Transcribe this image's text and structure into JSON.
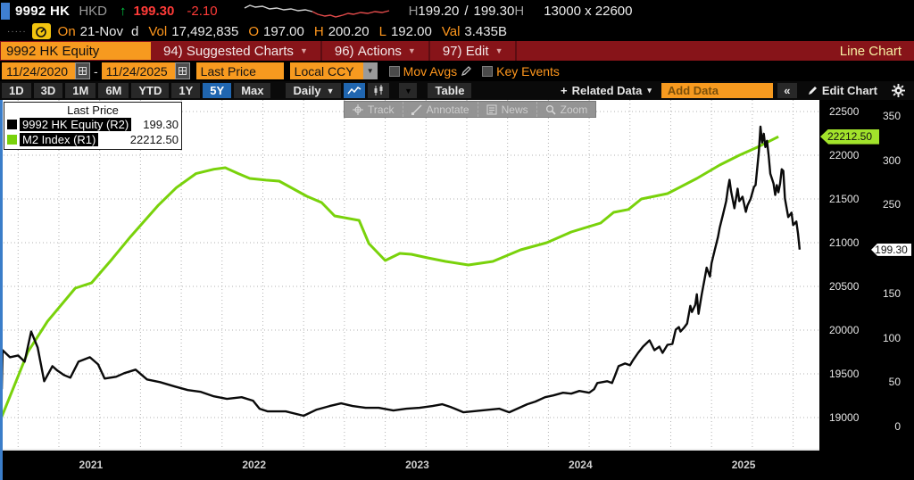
{
  "titlebar": {
    "ticker": "9992 HK",
    "currency": "HKD",
    "arrow": "↑",
    "last": "199.30",
    "change": "-2.10",
    "h1": "H",
    "bid": "199.20",
    "slash": "/",
    "ask": "199.30",
    "h2": "H",
    "lot": "13000 x 22600"
  },
  "session": {
    "on": "On",
    "date": "21-Nov",
    "d": "d",
    "vol_label": "Vol",
    "vol": "17,492,835",
    "o": "O",
    "open": "197.00",
    "h": "H",
    "high": "200.20",
    "l": "L",
    "low": "192.00",
    "val_label": "Val",
    "val": "3.435B"
  },
  "menu_bar": {
    "security": "9992 HK Equity",
    "items": [
      {
        "key": "94)",
        "label": "Suggested Charts"
      },
      {
        "key": "96)",
        "label": "Actions"
      },
      {
        "key": "97)",
        "label": "Edit"
      }
    ],
    "right_label": "Line Chart"
  },
  "controls": {
    "date_from": "11/24/2020",
    "dash": "-",
    "date_to": "11/24/2025",
    "field": "Last Price",
    "currency": "Local CCY",
    "mov_avgs": "Mov Avgs",
    "key_events": "Key Events"
  },
  "tab_bar": {
    "ranges": [
      "1D",
      "3D",
      "1M",
      "6M",
      "YTD",
      "1Y",
      "5Y",
      "Max"
    ],
    "active_range": "5Y",
    "period": "Daily",
    "table": "Table",
    "related": "Related Data",
    "add_data": "Add Data",
    "collapse": "«",
    "edit_chart": "Edit Chart"
  },
  "chart": {
    "legend": {
      "title": "Last Price",
      "series": [
        {
          "name": "9992 HK Equity  (R2)",
          "value": "199.30",
          "color": "#000000"
        },
        {
          "name": "M2 Index  (R1)",
          "value": "22212.50",
          "color": "#79d20b"
        }
      ]
    },
    "float_toolbar": {
      "track": "Track",
      "annotate": "Annotate",
      "news": "News",
      "zoom": "Zoom"
    },
    "badges": [
      {
        "text": "22212.50",
        "axis": "r1",
        "value": 22212.5
      },
      {
        "text": "199.30",
        "axis": "r2",
        "value": 199.3
      }
    ],
    "colors": {
      "line_black": "#0a0a0a",
      "line_green": "#79d20b",
      "grid": "#b2b2b2",
      "badge_green": "#a2e32b",
      "accent_amber": "#f79a1f",
      "menubar_red": "#871419"
    },
    "chart_data": {
      "type": "line",
      "title": "9992 HK Equity vs M2 Index, Last Price, 5Y Daily",
      "x_range": [
        2020.9,
        2025.9
      ],
      "x_ticks": [
        2021,
        2022,
        2023,
        2024,
        2025
      ],
      "grid": true,
      "legend_position": "top-left",
      "r1_axis": {
        "name": "M2 Index (R1)",
        "ticks": [
          22500,
          22000,
          21500,
          21000,
          20500,
          20000,
          19500,
          19000
        ]
      },
      "r2_axis": {
        "name": "9992 HK Equity (R2)",
        "ticks": [
          350,
          300,
          250,
          200,
          150,
          100,
          50,
          0
        ]
      },
      "series": [
        {
          "name": "M2 Index",
          "axis": "r1",
          "color": "#79d20b",
          "width": 3,
          "points": [
            [
              2020.9,
              19010
            ],
            [
              2020.98,
              19380
            ],
            [
              2021.06,
              19750
            ],
            [
              2021.18,
              20100
            ],
            [
              2021.35,
              20480
            ],
            [
              2021.45,
              20540
            ],
            [
              2021.57,
              20800
            ],
            [
              2021.69,
              21070
            ],
            [
              2021.86,
              21430
            ],
            [
              2021.97,
              21630
            ],
            [
              2022.09,
              21790
            ],
            [
              2022.2,
              21840
            ],
            [
              2022.27,
              21857
            ],
            [
              2022.35,
              21790
            ],
            [
              2022.42,
              21735
            ],
            [
              2022.52,
              21715
            ],
            [
              2022.6,
              21704
            ],
            [
              2022.67,
              21633
            ],
            [
              2022.77,
              21531
            ],
            [
              2022.86,
              21459
            ],
            [
              2022.94,
              21306
            ],
            [
              2023.09,
              21255
            ],
            [
              2023.15,
              20990
            ],
            [
              2023.25,
              20796
            ],
            [
              2023.34,
              20878
            ],
            [
              2023.41,
              20867
            ],
            [
              2023.51,
              20827
            ],
            [
              2023.62,
              20786
            ],
            [
              2023.76,
              20745
            ],
            [
              2023.91,
              20786
            ],
            [
              2024.08,
              20918
            ],
            [
              2024.24,
              21000
            ],
            [
              2024.39,
              21122
            ],
            [
              2024.57,
              21224
            ],
            [
              2024.65,
              21347
            ],
            [
              2024.74,
              21380
            ],
            [
              2024.82,
              21500
            ],
            [
              2024.98,
              21561
            ],
            [
              2025.16,
              21735
            ],
            [
              2025.3,
              21888
            ],
            [
              2025.42,
              22000
            ],
            [
              2025.54,
              22100
            ],
            [
              2025.66,
              22212.5
            ]
          ]
        },
        {
          "name": "9992 HK Equity",
          "axis": "r2",
          "color": "#0a0a0a",
          "width": 2.4,
          "points": [
            [
              2020.9,
              42
            ],
            [
              2020.905,
              86
            ],
            [
              2020.95,
              78
            ],
            [
              2021.0,
              80
            ],
            [
              2021.04,
              73
            ],
            [
              2021.08,
              107
            ],
            [
              2021.12,
              89
            ],
            [
              2021.16,
              51
            ],
            [
              2021.21,
              68
            ],
            [
              2021.24,
              63
            ],
            [
              2021.28,
              58
            ],
            [
              2021.32,
              55
            ],
            [
              2021.37,
              73
            ],
            [
              2021.44,
              78
            ],
            [
              2021.49,
              70
            ],
            [
              2021.53,
              54
            ],
            [
              2021.6,
              56
            ],
            [
              2021.65,
              60
            ],
            [
              2021.72,
              64
            ],
            [
              2021.79,
              53
            ],
            [
              2021.87,
              50
            ],
            [
              2021.96,
              45
            ],
            [
              2022.04,
              41
            ],
            [
              2022.12,
              39
            ],
            [
              2022.2,
              34
            ],
            [
              2022.28,
              31
            ],
            [
              2022.37,
              33
            ],
            [
              2022.44,
              29
            ],
            [
              2022.48,
              20
            ],
            [
              2022.53,
              17
            ],
            [
              2022.64,
              17
            ],
            [
              2022.75,
              12
            ],
            [
              2022.83,
              19
            ],
            [
              2022.91,
              23
            ],
            [
              2022.98,
              26
            ],
            [
              2023.05,
              23
            ],
            [
              2023.13,
              21
            ],
            [
              2023.21,
              21
            ],
            [
              2023.3,
              18
            ],
            [
              2023.38,
              20
            ],
            [
              2023.46,
              21
            ],
            [
              2023.54,
              23
            ],
            [
              2023.6,
              25
            ],
            [
              2023.65,
              22
            ],
            [
              2023.73,
              16
            ],
            [
              2023.84,
              18
            ],
            [
              2023.95,
              20
            ],
            [
              2024.01,
              16
            ],
            [
              2024.12,
              25
            ],
            [
              2024.17,
              28
            ],
            [
              2024.23,
              33
            ],
            [
              2024.28,
              35
            ],
            [
              2024.34,
              38
            ],
            [
              2024.39,
              37
            ],
            [
              2024.44,
              40
            ],
            [
              2024.5,
              38
            ],
            [
              2024.53,
              42
            ],
            [
              2024.55,
              49
            ],
            [
              2024.58,
              50
            ],
            [
              2024.61,
              51
            ],
            [
              2024.64,
              49
            ],
            [
              2024.66,
              58
            ],
            [
              2024.68,
              68
            ],
            [
              2024.72,
              71
            ],
            [
              2024.75,
              69
            ],
            [
              2024.77,
              75
            ],
            [
              2024.8,
              83
            ],
            [
              2024.83,
              90
            ],
            [
              2024.87,
              97
            ],
            [
              2024.9,
              86
            ],
            [
              2024.93,
              90
            ],
            [
              2024.95,
              83
            ],
            [
              2024.98,
              92
            ],
            [
              2025.01,
              93
            ],
            [
              2025.03,
              109
            ],
            [
              2025.05,
              112
            ],
            [
              2025.06,
              107
            ],
            [
              2025.08,
              111
            ],
            [
              2025.1,
              116
            ],
            [
              2025.12,
              136
            ],
            [
              2025.13,
              129
            ],
            [
              2025.15,
              137
            ],
            [
              2025.16,
              149
            ],
            [
              2025.17,
              127
            ],
            [
              2025.19,
              149
            ],
            [
              2025.21,
              169
            ],
            [
              2025.22,
              179
            ],
            [
              2025.24,
              169
            ],
            [
              2025.25,
              184
            ],
            [
              2025.27,
              199
            ],
            [
              2025.29,
              214
            ],
            [
              2025.3,
              224
            ],
            [
              2025.32,
              239
            ],
            [
              2025.34,
              254
            ],
            [
              2025.35,
              268
            ],
            [
              2025.36,
              278
            ],
            [
              2025.37,
              265
            ],
            [
              2025.39,
              246
            ],
            [
              2025.41,
              268
            ],
            [
              2025.42,
              254
            ],
            [
              2025.44,
              259
            ],
            [
              2025.46,
              242
            ],
            [
              2025.47,
              249
            ],
            [
              2025.49,
              257
            ],
            [
              2025.51,
              270
            ],
            [
              2025.52,
              272
            ],
            [
              2025.54,
              310
            ],
            [
              2025.55,
              338
            ],
            [
              2025.56,
              320
            ],
            [
              2025.57,
              330
            ],
            [
              2025.58,
              315
            ],
            [
              2025.59,
              322
            ],
            [
              2025.6,
              305
            ],
            [
              2025.61,
              285
            ],
            [
              2025.63,
              274
            ],
            [
              2025.64,
              261
            ],
            [
              2025.65,
              272
            ],
            [
              2025.66,
              264
            ],
            [
              2025.67,
              274
            ],
            [
              2025.68,
              290
            ],
            [
              2025.69,
              288
            ],
            [
              2025.7,
              257
            ],
            [
              2025.72,
              236
            ],
            [
              2025.74,
              241
            ],
            [
              2025.75,
              227
            ],
            [
              2025.77,
              231
            ],
            [
              2025.78,
              217
            ],
            [
              2025.79,
              199.3
            ]
          ]
        }
      ]
    }
  }
}
